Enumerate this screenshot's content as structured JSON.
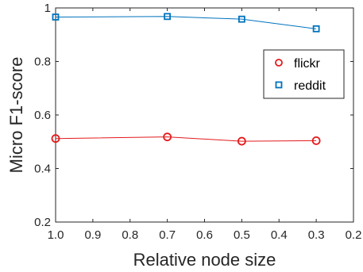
{
  "chart_data": {
    "type": "line",
    "title": "",
    "xlabel": "Relative node size",
    "ylabel": "Micro F1-score",
    "x_reversed": true,
    "xlim": [
      1.0,
      0.2
    ],
    "ylim": [
      0.2,
      1.0
    ],
    "x_ticks": [
      "1.0",
      "0.9",
      "0.8",
      "0.7",
      "0.6",
      "0.5",
      "0.4",
      "0.3",
      "0.2"
    ],
    "x_tick_values": [
      1.0,
      0.9,
      0.8,
      0.7,
      0.6,
      0.5,
      0.4,
      0.3,
      0.2
    ],
    "y_ticks": [
      "0.2",
      "0.4",
      "0.6",
      "0.8",
      "1"
    ],
    "y_tick_values": [
      0.2,
      0.4,
      0.6,
      0.8,
      1.0
    ],
    "grid": false,
    "legend_position": "top-right",
    "series": [
      {
        "name": "flickr",
        "color": "#e31a1c",
        "marker": "circle",
        "x": [
          1.0,
          0.7,
          0.5,
          0.3
        ],
        "y": [
          0.512,
          0.518,
          0.502,
          0.504
        ]
      },
      {
        "name": "reddit",
        "color": "#0072bd",
        "marker": "square",
        "x": [
          1.0,
          0.7,
          0.5,
          0.3
        ],
        "y": [
          0.966,
          0.968,
          0.958,
          0.922
        ]
      }
    ]
  }
}
